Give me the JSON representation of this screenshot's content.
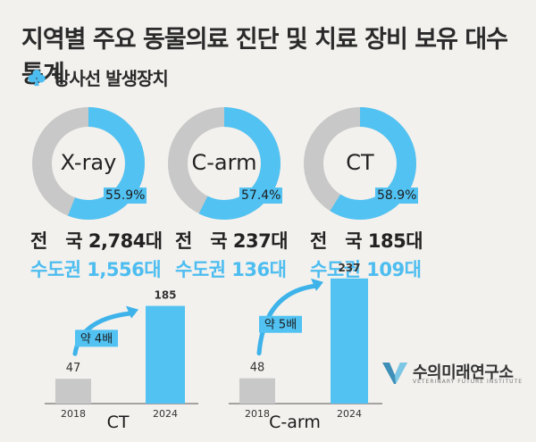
{
  "title": "지역별 주요 동물의료 진단 및 치료 장비 보유 대수 통계",
  "subtitle": "방사선 발생장치",
  "colors": {
    "accent": "#51c2f2",
    "rest": "#c8c8c8",
    "text": "#222222",
    "capital_text": "#4dbdf0",
    "arrow": "#3eb3ea"
  },
  "icon": "club-icon",
  "donuts": [
    {
      "label": "X-ray",
      "percent": 55.9,
      "percent_text": "55.9%",
      "national": "전   국 2,784대",
      "capital": "수도권 1,556대"
    },
    {
      "label": "C-arm",
      "percent": 57.4,
      "percent_text": "57.4%",
      "national": "전   국 237대",
      "capital": "수도권 136대"
    },
    {
      "label": "CT",
      "percent": 58.9,
      "percent_text": "58.9%",
      "national": "전   국 185대",
      "capital": "수도권 109대"
    }
  ],
  "chart_data": [
    {
      "type": "bar",
      "title": "CT",
      "categories": [
        "2018",
        "2024"
      ],
      "values": [
        47,
        185
      ],
      "annotation": "약 4배"
    },
    {
      "type": "bar",
      "title": "C-arm",
      "categories": [
        "2018",
        "2024"
      ],
      "values": [
        48,
        237
      ],
      "annotation": "약 5배"
    }
  ],
  "logo": {
    "name": "수의미래연구소",
    "sub": "VETERINARY FUTURE INSTITUTE"
  }
}
